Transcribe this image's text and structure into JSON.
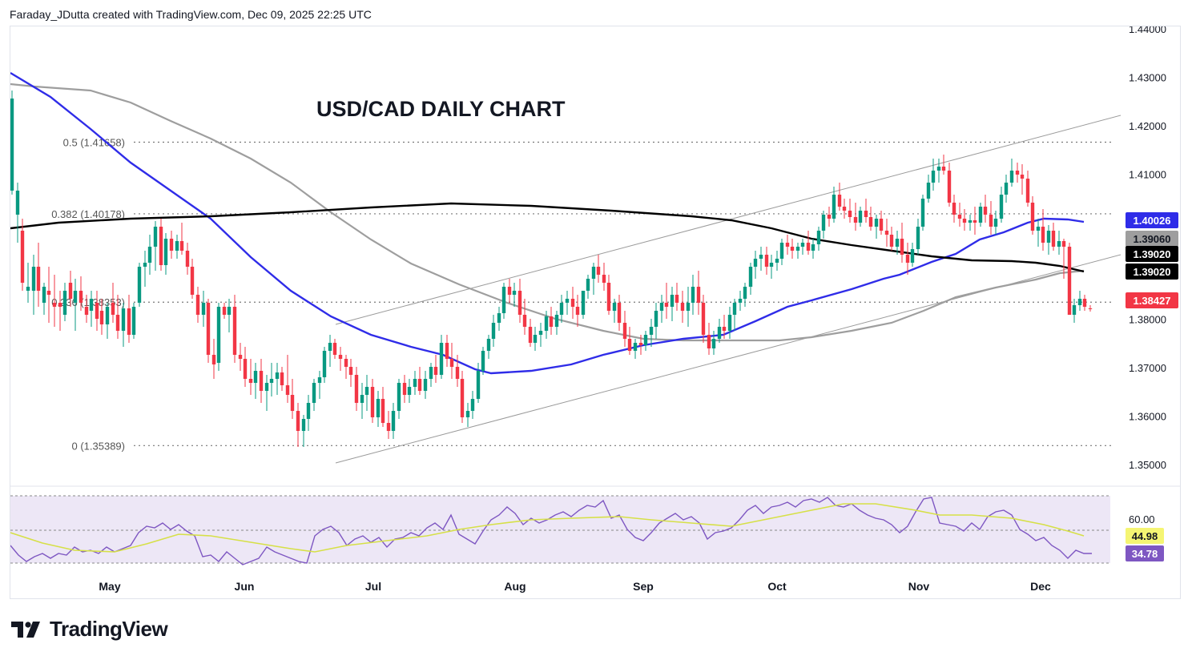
{
  "header": {
    "attribution": "Faraday_JDutta created with TradingView.com, Dec 09, 2025 22:25 UTC"
  },
  "brand": {
    "name": "TradingView",
    "icon": "tradingview-logo-icon"
  },
  "colors": {
    "up": "#089981",
    "down": "#f23645",
    "ema_fast": "#2f2ce8",
    "sma_mid": "#9e9e9e",
    "sma_long": "#000000",
    "rsi": "#7e57c2",
    "rsi_ma": "#d6e047",
    "rsi_band": "#ede7f6"
  },
  "chart_data": {
    "type": "candlestick",
    "title": "USD/CAD DAILY CHART",
    "ylim": [
      1.3455,
      1.4405
    ],
    "yticks": [
      "1.44000",
      "1.43000",
      "1.42000",
      "1.41000",
      "1.40000",
      "1.39000",
      "1.38000",
      "1.37000",
      "1.36000",
      "1.35000"
    ],
    "ytick_values": [
      1.44,
      1.43,
      1.42,
      1.41,
      1.4,
      1.39,
      1.38,
      1.37,
      1.36,
      1.35
    ],
    "xticks": [
      "May",
      "Jun",
      "Jul",
      "Aug",
      "Sep",
      "Oct",
      "Nov",
      "Dec"
    ],
    "fibonacci": [
      {
        "label": "0.5 (1.41658)",
        "value": 1.41658
      },
      {
        "label": "0.382 (1.40178)",
        "value": 1.40178
      },
      {
        "label": "0.236 (1.38353)",
        "value": 1.38353
      },
      {
        "label": "0 (1.35389)",
        "value": 1.35389
      }
    ],
    "price_badges": [
      {
        "label": "1.40026",
        "value": 1.40026,
        "color": "#2f2ce8",
        "text_color": "#ffffff"
      },
      {
        "label": "1.39060",
        "value": 1.3906,
        "color": "#9e9e9e",
        "text_color": "#131722"
      },
      {
        "label": "1.39020",
        "value": 1.3902,
        "color": "#000000",
        "text_color": "#ffffff"
      },
      {
        "label": "1.39020",
        "value": 1.3902,
        "color": "#000000",
        "text_color": "#ffffff"
      },
      {
        "label": "1.38427",
        "value": 1.38427,
        "color": "#f23645",
        "text_color": "#ffffff"
      }
    ],
    "rsi": {
      "ylim": [
        26,
        78
      ],
      "yticks": [
        "60.00"
      ],
      "ytick_values": [
        60
      ],
      "value_badges": [
        {
          "label": "44.98",
          "value": 44.98,
          "color": "#f5f573",
          "text_color": "#131722"
        },
        {
          "label": "34.78",
          "value": 34.78,
          "color": "#7e57c2",
          "text_color": "#ffffff"
        }
      ]
    }
  }
}
